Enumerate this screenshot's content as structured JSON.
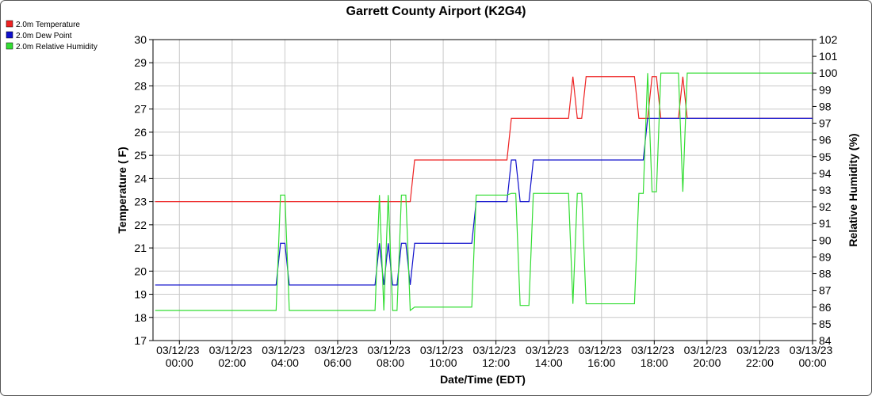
{
  "chart_data": {
    "type": "line",
    "title": "Garrett County Airport (K2G4)",
    "x_label": "Date/Time (EDT)",
    "y_label": "Temperature ( F)",
    "y2_label": "Relative Humidity (%)",
    "x": [
      "03/11/23 23:05",
      "03/12/23 03:40",
      "03/12/23 03:50",
      "03/12/23 04:00",
      "03/12/23 04:10",
      "03/12/23 07:25",
      "03/12/23 07:35",
      "03/12/23 07:45",
      "03/12/23 07:55",
      "03/12/23 08:05",
      "03/12/23 08:15",
      "03/12/23 08:25",
      "03/12/23 08:35",
      "03/12/23 08:45",
      "03/12/23 08:55",
      "03/12/23 11:05",
      "03/12/23 11:15",
      "03/12/23 12:25",
      "03/12/23 12:35",
      "03/12/23 12:45",
      "03/12/23 12:55",
      "03/12/23 13:15",
      "03/12/23 13:25",
      "03/12/23 14:45",
      "03/12/23 14:55",
      "03/12/23 15:05",
      "03/12/23 15:15",
      "03/12/23 15:25",
      "03/12/23 17:15",
      "03/12/23 17:25",
      "03/12/23 17:35",
      "03/12/23 17:45",
      "03/12/23 17:55",
      "03/12/23 18:05",
      "03/12/23 18:15",
      "03/12/23 18:55",
      "03/12/23 19:05",
      "03/12/23 19:15",
      "03/13/23 00:00"
    ],
    "series": [
      {
        "name": "2.0m Temperature",
        "color": "#ee2222",
        "axis": "y",
        "values": [
          23,
          23,
          23,
          23,
          23,
          23,
          23,
          23,
          23,
          23,
          23,
          23,
          23,
          23,
          24.8,
          24.8,
          24.8,
          24.8,
          26.6,
          26.6,
          26.6,
          26.6,
          26.6,
          26.6,
          28.4,
          26.6,
          26.6,
          28.4,
          28.4,
          26.6,
          26.6,
          26.6,
          28.4,
          28.4,
          26.6,
          26.6,
          28.4,
          26.6,
          26.6
        ]
      },
      {
        "name": "2.0m Dew Point",
        "color": "#1010cc",
        "axis": "y",
        "values": [
          19.4,
          19.4,
          21.2,
          21.2,
          19.4,
          19.4,
          21.2,
          19.4,
          21.2,
          19.4,
          19.4,
          21.2,
          21.2,
          19.4,
          21.2,
          21.2,
          23,
          23,
          24.8,
          24.8,
          23,
          23,
          24.8,
          24.8,
          24.8,
          24.8,
          24.8,
          24.8,
          24.8,
          24.8,
          24.8,
          26.6,
          26.6,
          26.6,
          26.6,
          26.6,
          26.6,
          26.6,
          26.6
        ]
      },
      {
        "name": "2.0m Relative Humidity",
        "color": "#33dd33",
        "axis": "y2",
        "values": [
          85.8,
          85.8,
          92.7,
          92.7,
          85.8,
          85.8,
          92.7,
          85.8,
          92.7,
          85.8,
          85.8,
          92.7,
          92.7,
          85.8,
          86.0,
          86.0,
          92.7,
          92.7,
          92.8,
          92.8,
          86.1,
          86.1,
          92.8,
          92.8,
          86.2,
          92.8,
          92.8,
          86.2,
          86.2,
          92.8,
          92.8,
          100,
          92.9,
          92.9,
          100,
          100,
          92.9,
          100,
          100
        ]
      }
    ],
    "xlim": [
      "03/11/23 23:00",
      "03/13/23 00:00"
    ],
    "xticks": [
      "03/12/23 00:00",
      "03/12/23 02:00",
      "03/12/23 04:00",
      "03/12/23 06:00",
      "03/12/23 08:00",
      "03/12/23 10:00",
      "03/12/23 12:00",
      "03/12/23 14:00",
      "03/12/23 16:00",
      "03/12/23 18:00",
      "03/12/23 20:00",
      "03/12/23 22:00",
      "03/13/23 00:00"
    ],
    "ylim": [
      17,
      30
    ],
    "yticks": [
      17,
      18,
      19,
      20,
      21,
      22,
      23,
      24,
      25,
      26,
      27,
      28,
      29,
      30
    ],
    "y2lim": [
      84,
      102
    ],
    "y2ticks": [
      84,
      85,
      86,
      87,
      88,
      89,
      90,
      91,
      92,
      93,
      94,
      95,
      96,
      97,
      98,
      99,
      100,
      101,
      102
    ],
    "grid": true,
    "legend": "top-left"
  }
}
